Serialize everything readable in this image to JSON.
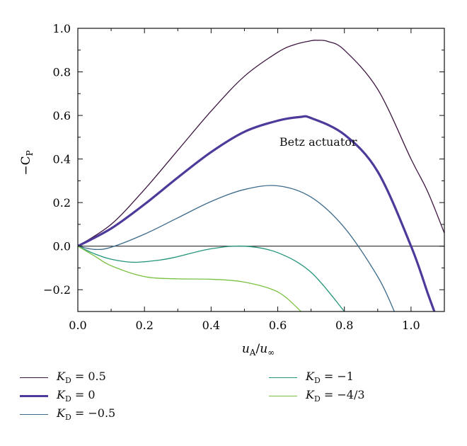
{
  "chart_data": {
    "type": "line",
    "xlabel": "u_A/u_∞",
    "ylabel": "−C_P",
    "xlim": [
      0.0,
      1.1
    ],
    "ylim": [
      -0.3,
      1.0
    ],
    "xticks": [
      "0.0",
      "0.2",
      "0.4",
      "0.6",
      "0.8",
      "1.0"
    ],
    "yticks": [
      "1.0",
      "0.8",
      "0.6",
      "0.4",
      "0.2",
      "0.0",
      "−0.2"
    ],
    "annotation": "Betz actuator",
    "series": [
      {
        "name": "K_D = 0.5",
        "legend_value": "0.5",
        "color": "#3d1540",
        "width": 1.3,
        "x": [
          0,
          0.1,
          0.2,
          0.3,
          0.4,
          0.5,
          0.6,
          0.65,
          0.7,
          0.72,
          0.75,
          0.8,
          0.9,
          1.0,
          1.05,
          1.1
        ],
        "y": [
          0,
          0.1,
          0.26,
          0.44,
          0.62,
          0.78,
          0.89,
          0.925,
          0.943,
          0.945,
          0.94,
          0.9,
          0.72,
          0.4,
          0.25,
          0.06
        ]
      },
      {
        "name": "K_D = 0",
        "legend_value": "0",
        "color": "#4e3a9a",
        "width": 3.2,
        "x": [
          0,
          0.1,
          0.2,
          0.3,
          0.4,
          0.5,
          0.6,
          0.667,
          0.7,
          0.8,
          0.9,
          1.0,
          1.05,
          1.07
        ],
        "y": [
          0,
          0.081,
          0.192,
          0.315,
          0.432,
          0.525,
          0.576,
          0.593,
          0.588,
          0.512,
          0.342,
          0.0,
          -0.216,
          -0.3
        ]
      },
      {
        "name": "K_D = −0.5",
        "legend_value": "−0.5",
        "color": "#3c6b8b",
        "width": 1.3,
        "x": [
          0,
          0.05,
          0.1,
          0.2,
          0.3,
          0.4,
          0.5,
          0.6,
          0.7,
          0.8,
          0.9,
          0.95
        ],
        "y": [
          0,
          -0.015,
          -0.005,
          0.055,
          0.13,
          0.205,
          0.26,
          0.277,
          0.225,
          0.085,
          -0.14,
          -0.3
        ]
      },
      {
        "name": "K_D = −1",
        "legend_value": "−1",
        "color": "#23957a",
        "width": 1.3,
        "x": [
          0,
          0.05,
          0.1,
          0.167,
          0.25,
          0.3,
          0.4,
          0.5,
          0.6,
          0.7,
          0.8
        ],
        "y": [
          0,
          -0.035,
          -0.06,
          -0.074,
          -0.063,
          -0.048,
          -0.012,
          0.0,
          -0.03,
          -0.12,
          -0.3
        ]
      },
      {
        "name": "K_D = −4/3",
        "legend_value": "−4/3",
        "color": "#7ac142",
        "width": 1.3,
        "x": [
          0,
          0.05,
          0.1,
          0.2,
          0.3,
          0.4,
          0.5,
          0.6,
          0.67
        ],
        "y": [
          0,
          -0.045,
          -0.09,
          -0.14,
          -0.15,
          -0.152,
          -0.165,
          -0.21,
          -0.3
        ]
      }
    ]
  },
  "legend": {
    "label_prefix": "K",
    "label_sub": "D",
    "label_eq": " = "
  }
}
